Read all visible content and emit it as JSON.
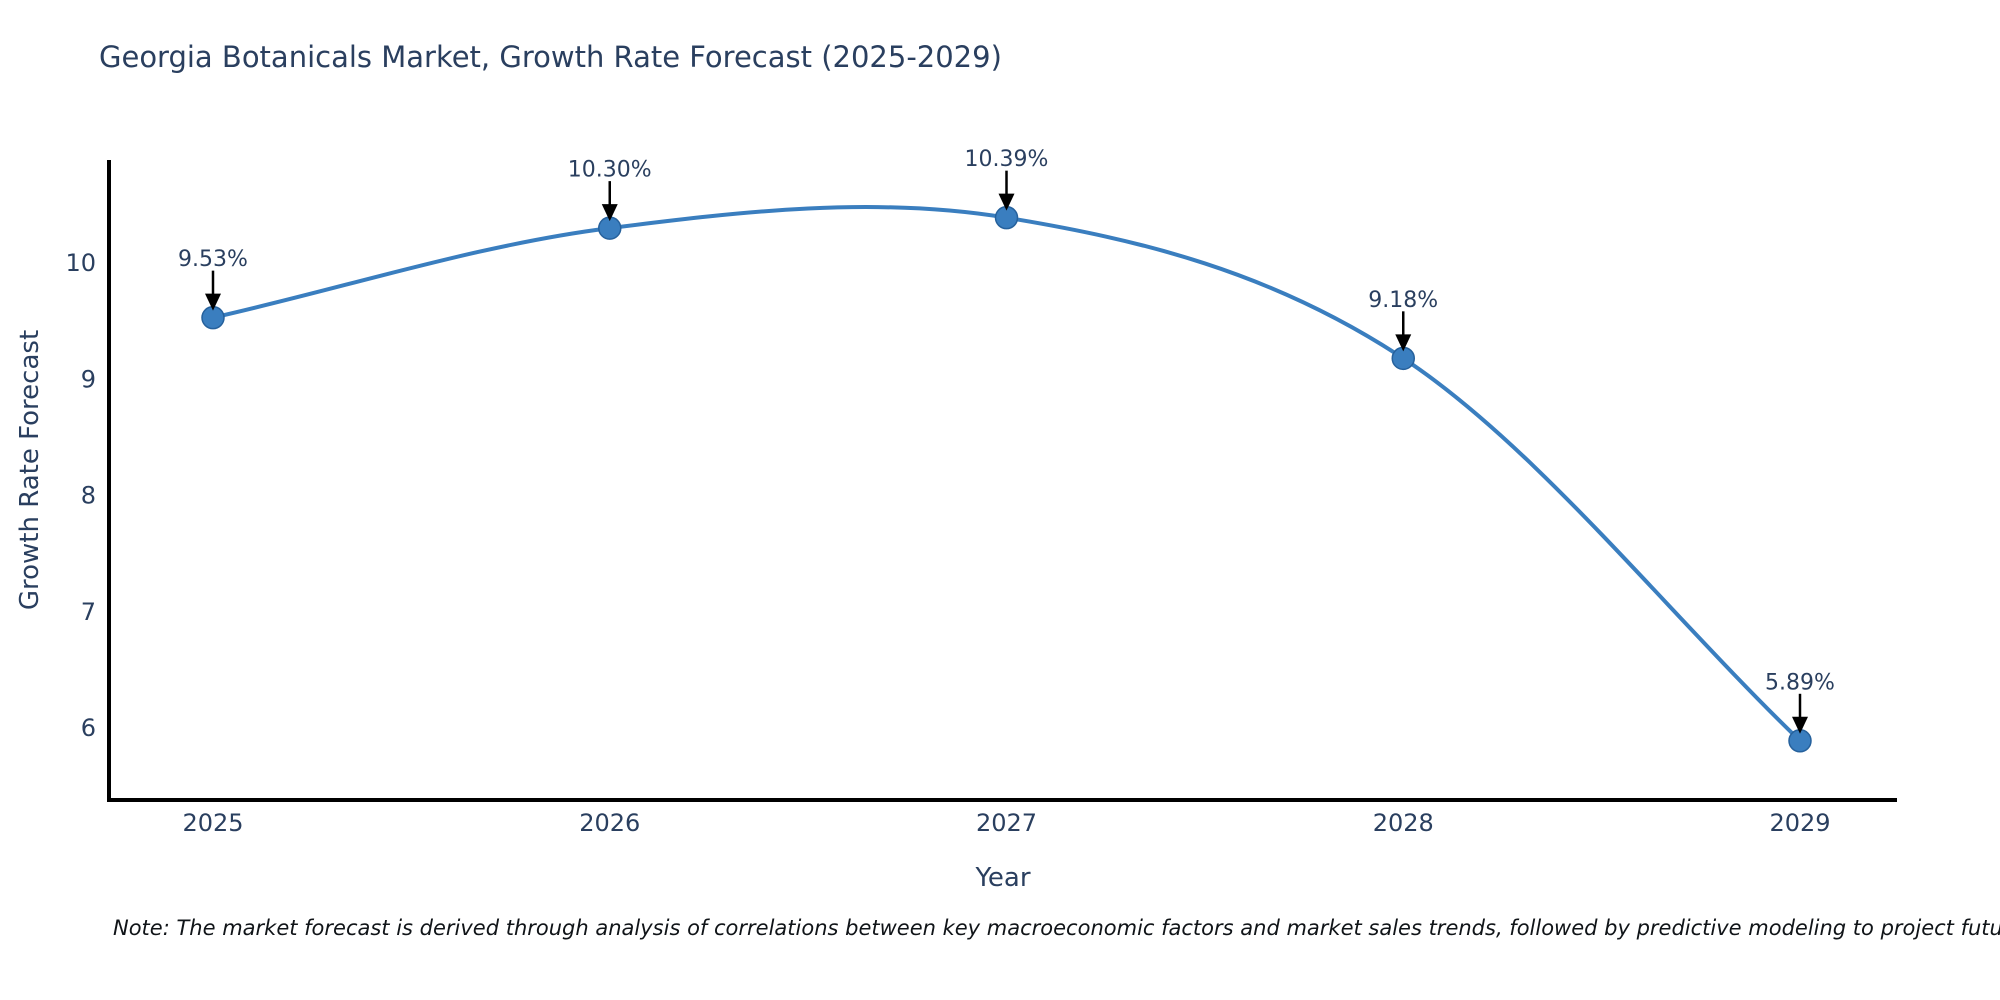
{
  "title": "Georgia Botanicals Market, Growth Rate Forecast (2025-2029)",
  "note": "Note: The market forecast is derived through analysis of correlations between key macroeconomic factors and market sales trends, followed by predictive modeling to project future sales",
  "chart_data": {
    "type": "line",
    "title": "Georgia Botanicals Market, Growth Rate Forecast (2025-2029)",
    "xlabel": "Year",
    "ylabel": "Growth Rate Forecast",
    "categories": [
      "2025",
      "2026",
      "2027",
      "2028",
      "2029"
    ],
    "series": [
      {
        "name": "Growth Rate Forecast",
        "values": [
          9.53,
          10.3,
          10.39,
          9.18,
          5.89
        ],
        "point_labels": [
          "9.53%",
          "10.30%",
          "10.39%",
          "9.18%",
          "5.89%"
        ]
      }
    ],
    "y_ticks": [
      6,
      7,
      8,
      9,
      10
    ],
    "ylim": [
      5.38,
      10.89
    ],
    "grid": false,
    "legend_visible": false,
    "curve": "spline",
    "line_color": "#3a7ebf",
    "marker_color": "#3a7ebf",
    "marker_edge_color": "#26619c",
    "annotation_arrow_color": "#000000",
    "annotation_text_color": "#2a3f5f",
    "axis_line_color": "#000000",
    "tick_label_color": "#2a3f5f",
    "title_color": "#2a3f5f",
    "background_color": "#ffffff"
  }
}
